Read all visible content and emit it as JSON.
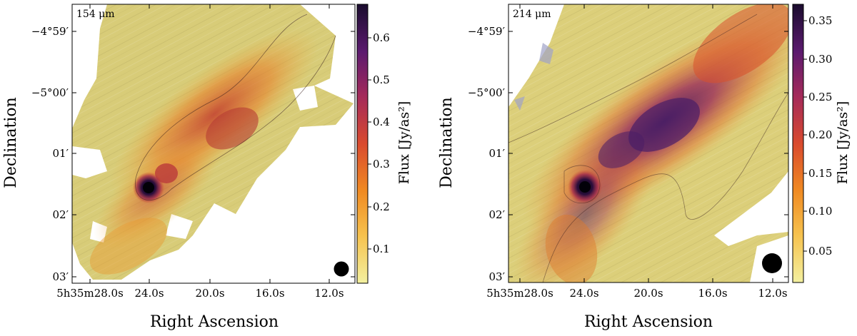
{
  "panels": [
    {
      "id": "left",
      "wavelength_label": "154 μm",
      "xlabel": "Right Ascension",
      "ylabel": "Declination",
      "colorbar_label": "Flux [Jy/as²]",
      "x_tick_labels": [
        "5h35m28.0s",
        "24.0s",
        "20.0s",
        "16.0s",
        "12.0s"
      ],
      "y_tick_labels": [
        "−4°59′",
        "−5°00′",
        "01′",
        "02′",
        "03′"
      ],
      "colorbar_ticks": [
        "0.1",
        "0.2",
        "0.3",
        "0.4",
        "0.5",
        "0.6"
      ],
      "colormap": [
        "#f3f0a0",
        "#f6c24e",
        "#f08a22",
        "#d94a2e",
        "#a42a5a",
        "#5b1a6e",
        "#1a0c2e"
      ]
    },
    {
      "id": "right",
      "wavelength_label": "214 μm",
      "xlabel": "Right Ascension",
      "ylabel": "Declination",
      "colorbar_label": "Flux [Jy/as²]",
      "x_tick_labels": [
        "5h35m28.0s",
        "24.0s",
        "20.0s",
        "16.0s",
        "12.0s"
      ],
      "y_tick_labels": [
        "−4°59′",
        "−5°00′",
        "01′",
        "02′",
        "03′"
      ],
      "colorbar_ticks": [
        "0.05",
        "0.10",
        "0.15",
        "0.20",
        "0.25",
        "0.30",
        "0.35"
      ],
      "colormap": [
        "#f3f0a0",
        "#f6c24e",
        "#f08a22",
        "#d94a2e",
        "#a42a5a",
        "#5b1a6e",
        "#1a0c2e"
      ]
    }
  ],
  "chart_data": [
    {
      "type": "heatmap",
      "title": "",
      "annotation": "154 μm",
      "xlabel": "Right Ascension",
      "ylabel": "Declination",
      "colorbar_label": "Flux [Jy/as²]",
      "colorbar_range": [
        0.03,
        0.66
      ],
      "colorbar_ticks": [
        0.1,
        0.2,
        0.3,
        0.4,
        0.5,
        0.6
      ],
      "colormap": "inferno_r",
      "x_ticks": [
        "5h35m28.0s",
        "24.0s",
        "20.0s",
        "16.0s",
        "12.0s"
      ],
      "y_ticks": [
        "−4°59′",
        "−5°00′",
        "01′",
        "02′",
        "03′"
      ],
      "features": {
        "peak_flux": 0.66,
        "peak_position": [
          "24.0s",
          "01.6′"
        ],
        "beam": "filled circle, bottom-right"
      }
    },
    {
      "type": "heatmap",
      "title": "",
      "annotation": "214 μm",
      "xlabel": "Right Ascension",
      "ylabel": "Declination",
      "colorbar_label": "Flux [Jy/as²]",
      "colorbar_range": [
        0.0,
        0.37
      ],
      "colorbar_ticks": [
        0.05,
        0.1,
        0.15,
        0.2,
        0.25,
        0.3,
        0.35
      ],
      "colormap": "inferno_r",
      "x_ticks": [
        "5h35m28.0s",
        "24.0s",
        "20.0s",
        "16.0s",
        "12.0s"
      ],
      "y_ticks": [
        "−4°59′",
        "−5°00′",
        "01′",
        "02′",
        "03′"
      ],
      "features": {
        "peak_flux": 0.37,
        "peak_position": [
          "24.0s",
          "01.6′"
        ],
        "beam": "filled circle, bottom-right"
      }
    }
  ]
}
